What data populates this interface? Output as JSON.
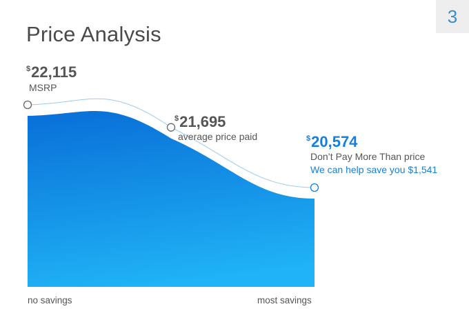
{
  "page_number": "3",
  "title": "Price Analysis",
  "colors": {
    "accent_blue": "#1480de",
    "fill_top": "#0a72d9",
    "fill_bottom": "#20b4f6",
    "text_gray": "#555555",
    "badge_bg": "#eeeeee",
    "badge_text": "#3a8fc7"
  },
  "chart_data": {
    "type": "area",
    "x": [
      0,
      0.5,
      1
    ],
    "values": [
      22115,
      21695,
      20574
    ],
    "ylim": [
      19700,
      22300
    ],
    "xlabel_left": "no savings",
    "xlabel_right": "most savings",
    "points": [
      {
        "currency": "$",
        "amount": "22,115",
        "label": "MSRP"
      },
      {
        "currency": "$",
        "amount": "21,695",
        "label": "average price paid"
      },
      {
        "currency": "$",
        "amount": "20,574",
        "label": "Don’t Pay More Than price",
        "note": "We can help save you $1,541"
      }
    ]
  }
}
